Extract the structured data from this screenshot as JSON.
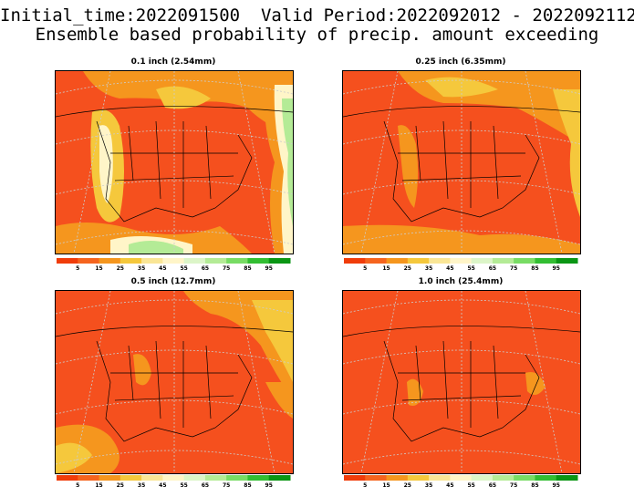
{
  "header": {
    "line1": "Initial_time:2022091500  Valid Period:2022092012 - 2022092112",
    "line2": "Ensemble based probability of precip. amount exceeding"
  },
  "panels": [
    {
      "title": "0.1 inch (2.54mm)",
      "scheme": "low"
    },
    {
      "title": "0.25 inch (6.35mm)",
      "scheme": "mid"
    },
    {
      "title": "0.5 inch (12.7mm)",
      "scheme": "high"
    },
    {
      "title": "1.0 inch (25.4mm)",
      "scheme": "max"
    }
  ],
  "colorbar": {
    "labels": [
      "5",
      "15",
      "25",
      "35",
      "45",
      "55",
      "65",
      "75",
      "85",
      "95"
    ],
    "colors": [
      "#f03c0a",
      "#f5641e",
      "#f5961e",
      "#f5c83c",
      "#fae696",
      "#fff5c8",
      "#dcf5c8",
      "#b4eb96",
      "#78dc64",
      "#32be32",
      "#0a9614"
    ]
  },
  "map_colors": {
    "orange_red": "#f5501e",
    "orange": "#f5961e",
    "yellow": "#f5c83c",
    "pale": "#fff5c8",
    "light_green": "#b4eb96",
    "green": "#78dc64"
  }
}
